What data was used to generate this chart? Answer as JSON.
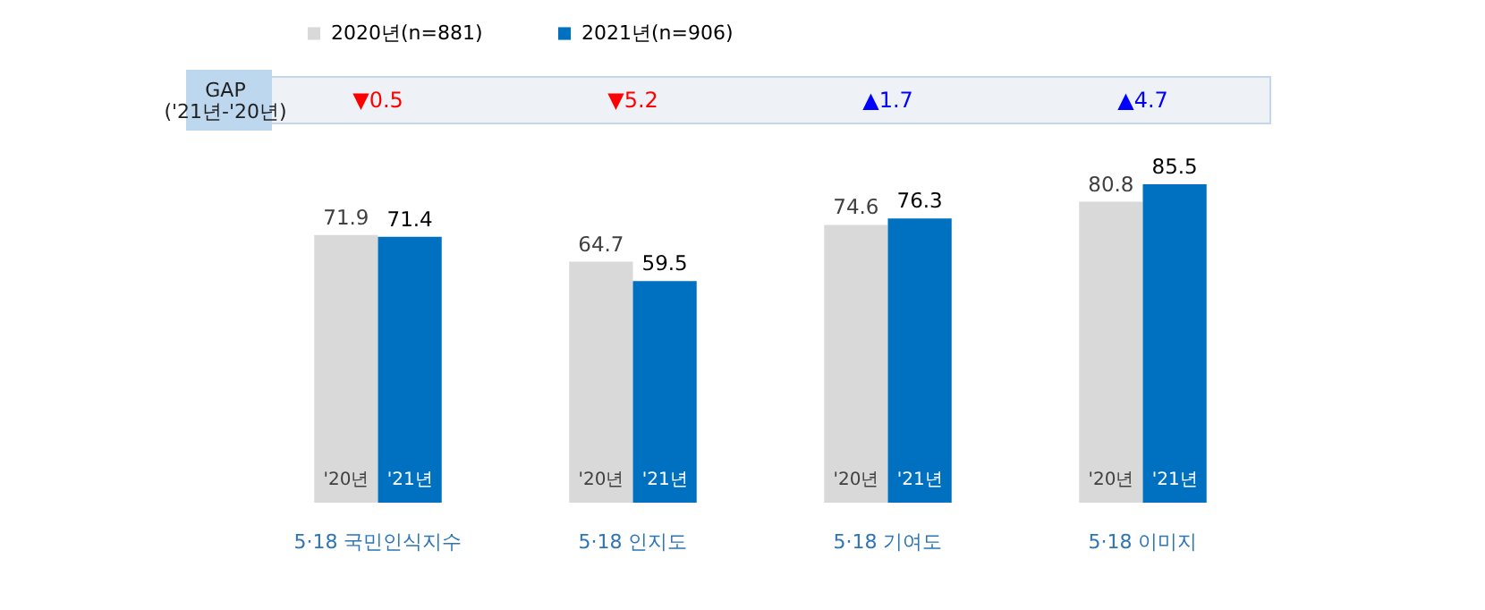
{
  "chart_data": {
    "type": "bar",
    "categories": [
      "5·18 국민인식지수",
      "5·18 인지도",
      "5·18 기여도",
      "5·18 이미지"
    ],
    "series": [
      {
        "name": "2020년(n=881)",
        "color": "#d9d9d9",
        "values": [
          71.9,
          64.7,
          74.6,
          80.8
        ]
      },
      {
        "name": "2021년(n=906)",
        "color": "#0070c0",
        "values": [
          71.4,
          59.5,
          76.3,
          85.5
        ]
      }
    ],
    "tick_labels": "x",
    "data_labels": true,
    "legend": "top",
    "annotations": [
      "GAP",
      "('21년-'20년)",
      "▼0.5",
      "▼5.2",
      "▲1.7",
      "▲4.7",
      "'20년",
      "'21년",
      "'20년",
      "'21년",
      "'20년",
      "'21년",
      "'20년",
      "'21년"
    ]
  }
}
